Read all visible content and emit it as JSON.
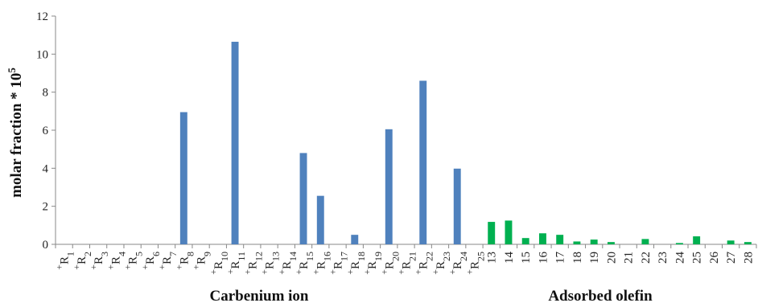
{
  "chart_data": {
    "type": "bar",
    "title": "",
    "ylabel": "molar fraction * 10",
    "ylabel_sup": "5",
    "ylim": [
      0,
      12
    ],
    "yticks": [
      0,
      2,
      4,
      6,
      8,
      10,
      12
    ],
    "grid": false,
    "groups": [
      {
        "name": "Carbenium ion",
        "color": "#4f81bd",
        "categories": [
          {
            "base": "R",
            "sub": "1",
            "sup": "+"
          },
          {
            "base": "R",
            "sub": "2",
            "sup": "+"
          },
          {
            "base": "R",
            "sub": "3",
            "sup": "+"
          },
          {
            "base": "R",
            "sub": "4",
            "sup": "+"
          },
          {
            "base": "R",
            "sub": "5",
            "sup": "+"
          },
          {
            "base": "R",
            "sub": "6",
            "sup": "+"
          },
          {
            "base": "R",
            "sub": "7",
            "sup": "+"
          },
          {
            "base": "R",
            "sub": "8",
            "sup": "+"
          },
          {
            "base": "R",
            "sub": "9",
            "sup": "+"
          },
          {
            "base": "R",
            "sub": "10",
            "sup": "+"
          },
          {
            "base": "R",
            "sub": "11",
            "sup": "+"
          },
          {
            "base": "R",
            "sub": "12",
            "sup": "+"
          },
          {
            "base": "R",
            "sub": "13",
            "sup": "+"
          },
          {
            "base": "R",
            "sub": "14",
            "sup": "+"
          },
          {
            "base": "R",
            "sub": "15",
            "sup": "+"
          },
          {
            "base": "R",
            "sub": "16",
            "sup": "+"
          },
          {
            "base": "R",
            "sub": "17",
            "sup": "+"
          },
          {
            "base": "R",
            "sub": "18",
            "sup": "+"
          },
          {
            "base": "R",
            "sub": "19",
            "sup": "+"
          },
          {
            "base": "R",
            "sub": "20",
            "sup": "+"
          },
          {
            "base": "R",
            "sub": "21",
            "sup": "+"
          },
          {
            "base": "R",
            "sub": "22",
            "sup": "+"
          },
          {
            "base": "R",
            "sub": "23",
            "sup": "+"
          },
          {
            "base": "R",
            "sub": "24",
            "sup": "+"
          },
          {
            "base": "R",
            "sub": "25",
            "sup": "+"
          }
        ],
        "values": [
          0,
          0,
          0,
          0,
          0,
          0,
          0,
          6.95,
          0,
          0,
          10.65,
          0,
          0,
          0,
          4.8,
          2.55,
          0,
          0.5,
          0,
          6.05,
          0,
          8.6,
          0,
          3.98,
          0
        ]
      },
      {
        "name": "Adsorbed olefin",
        "color": "#00b050",
        "categories": [
          "13",
          "14",
          "15",
          "16",
          "17",
          "18",
          "19",
          "20",
          "21",
          "22",
          "23",
          "24",
          "25",
          "26",
          "27",
          "28"
        ],
        "values": [
          1.18,
          1.25,
          0.33,
          0.58,
          0.5,
          0.15,
          0.25,
          0.12,
          0,
          0.28,
          0,
          0.07,
          0.42,
          0,
          0.2,
          0.12
        ]
      }
    ]
  }
}
